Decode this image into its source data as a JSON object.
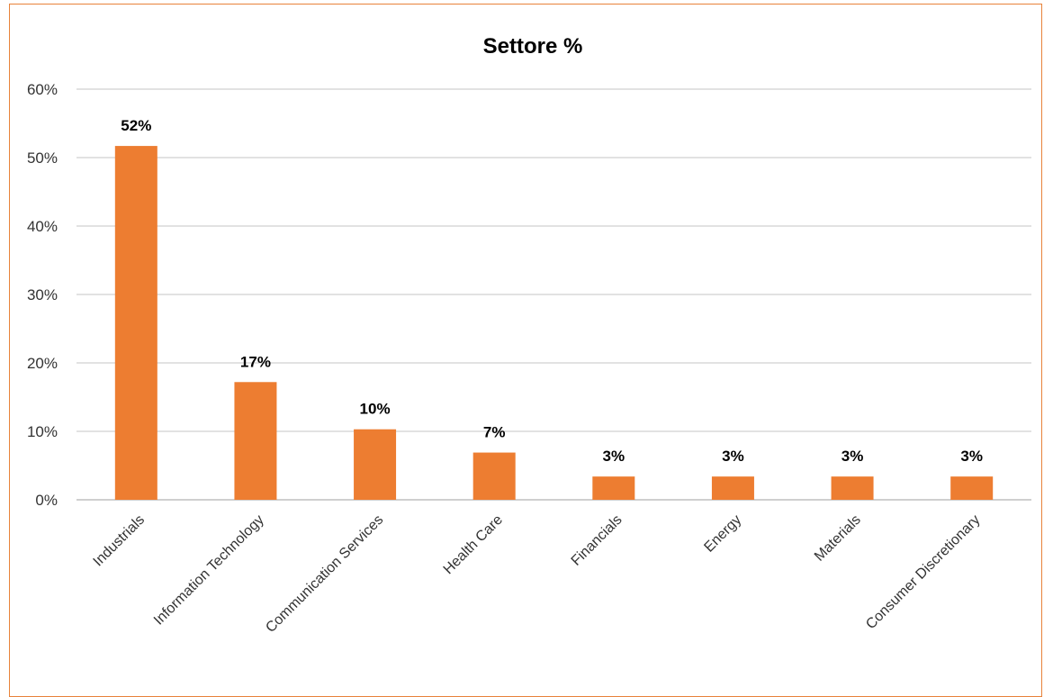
{
  "chart_data": {
    "type": "bar",
    "title": "Settore %",
    "categories": [
      "Industrials",
      "Information Technology",
      "Communication Services",
      "Health Care",
      "Financials",
      "Energy",
      "Materials",
      "Consumer Discretionary"
    ],
    "values": [
      0.517,
      0.172,
      0.103,
      0.069,
      0.034,
      0.034,
      0.034,
      0.034
    ],
    "data_labels": [
      "52%",
      "17%",
      "10%",
      "7%",
      "3%",
      "3%",
      "3%",
      "3%"
    ],
    "y_ticks": [
      "0%",
      "10%",
      "20%",
      "30%",
      "40%",
      "50%",
      "60%"
    ],
    "ylim": [
      0,
      0.6
    ],
    "grid": true,
    "legend": "none",
    "bar_color": "#ed7d31",
    "xlabel": "",
    "ylabel": ""
  }
}
